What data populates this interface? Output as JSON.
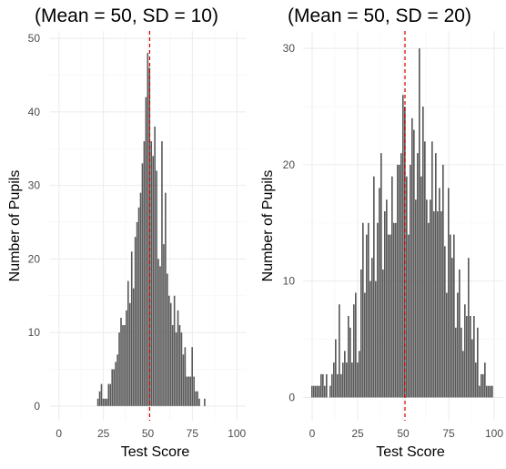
{
  "chart_data": [
    {
      "type": "bar",
      "title": "(Mean = 50, SD = 10)",
      "xlabel": "Test Score",
      "ylabel": "Number of Pupils",
      "xlim": [
        -5,
        105
      ],
      "ylim": [
        -2,
        51
      ],
      "xticks": [
        0,
        25,
        50,
        75,
        100
      ],
      "yticks": [
        0,
        10,
        20,
        30,
        40,
        50
      ],
      "grid": true,
      "reference_line": {
        "x": 51,
        "color": "#cc0000",
        "style": "dashed"
      },
      "bar_color": "#595959",
      "bin_width": 1,
      "x": [
        22,
        23,
        24,
        25,
        26,
        27,
        28,
        29,
        30,
        31,
        32,
        33,
        34,
        35,
        36,
        37,
        38,
        39,
        40,
        41,
        42,
        43,
        44,
        45,
        46,
        47,
        48,
        49,
        50,
        51,
        52,
        53,
        54,
        55,
        56,
        57,
        58,
        59,
        60,
        61,
        62,
        63,
        64,
        65,
        66,
        67,
        68,
        69,
        70,
        71,
        72,
        73,
        74,
        75,
        76,
        77,
        78,
        79,
        80,
        81,
        82
      ],
      "values": [
        1,
        2,
        3,
        1,
        1,
        1,
        3,
        3,
        5,
        5,
        6,
        7,
        10,
        12,
        11,
        11,
        13,
        17,
        14,
        21,
        16,
        23,
        25,
        27,
        29,
        33,
        36,
        42,
        48,
        46,
        36,
        34,
        38,
        32,
        20,
        19,
        36,
        22,
        29,
        18,
        15,
        14,
        11,
        15,
        10,
        13,
        11,
        10,
        7,
        8,
        4,
        4,
        4,
        8,
        4,
        2,
        2,
        1,
        0,
        0,
        1
      ]
    },
    {
      "type": "bar",
      "title": "(Mean = 50, SD = 20)",
      "xlabel": "Test Score",
      "ylabel": "Number of Pupils",
      "xlim": [
        -5,
        105
      ],
      "ylim": [
        -2,
        31.5
      ],
      "xticks": [
        0,
        25,
        50,
        75,
        100
      ],
      "yticks": [
        0,
        10,
        20,
        30
      ],
      "grid": true,
      "reference_line": {
        "x": 51,
        "color": "#cc0000",
        "style": "dashed"
      },
      "bar_color": "#595959",
      "bin_width": 1,
      "x": [
        0,
        1,
        2,
        3,
        4,
        5,
        6,
        7,
        8,
        9,
        10,
        11,
        12,
        13,
        14,
        15,
        16,
        17,
        18,
        19,
        20,
        21,
        22,
        23,
        24,
        25,
        26,
        27,
        28,
        29,
        30,
        31,
        32,
        33,
        34,
        35,
        36,
        37,
        38,
        39,
        40,
        41,
        42,
        43,
        44,
        45,
        46,
        47,
        48,
        49,
        50,
        51,
        52,
        53,
        54,
        55,
        56,
        57,
        58,
        59,
        60,
        61,
        62,
        63,
        64,
        65,
        66,
        67,
        68,
        69,
        70,
        71,
        72,
        73,
        74,
        75,
        76,
        77,
        78,
        79,
        80,
        81,
        82,
        83,
        84,
        85,
        86,
        87,
        88,
        89,
        90,
        91,
        92,
        93,
        94,
        95,
        96,
        97,
        98,
        99,
        100
      ],
      "values": [
        1,
        1,
        1,
        1,
        1,
        2,
        2,
        1,
        2,
        0,
        1,
        2,
        3,
        5,
        2,
        8,
        2,
        3,
        4,
        3,
        7,
        6,
        3,
        8,
        9,
        3,
        4,
        11,
        15,
        9,
        14,
        15,
        10,
        12,
        19,
        10,
        15,
        18,
        21,
        11,
        16,
        17,
        14,
        14,
        19,
        15,
        15,
        20,
        20,
        21,
        26,
        25,
        19,
        14,
        20,
        24,
        23,
        17,
        21,
        30,
        19,
        25,
        22,
        17,
        15,
        17,
        22,
        16,
        21,
        16,
        18,
        16,
        20,
        13,
        9,
        18,
        14,
        12,
        14,
        6,
        9,
        11,
        6,
        4,
        8,
        7,
        12,
        7,
        5,
        7,
        3,
        6,
        1,
        2,
        2,
        3,
        1,
        1,
        1,
        1,
        0
      ]
    }
  ]
}
